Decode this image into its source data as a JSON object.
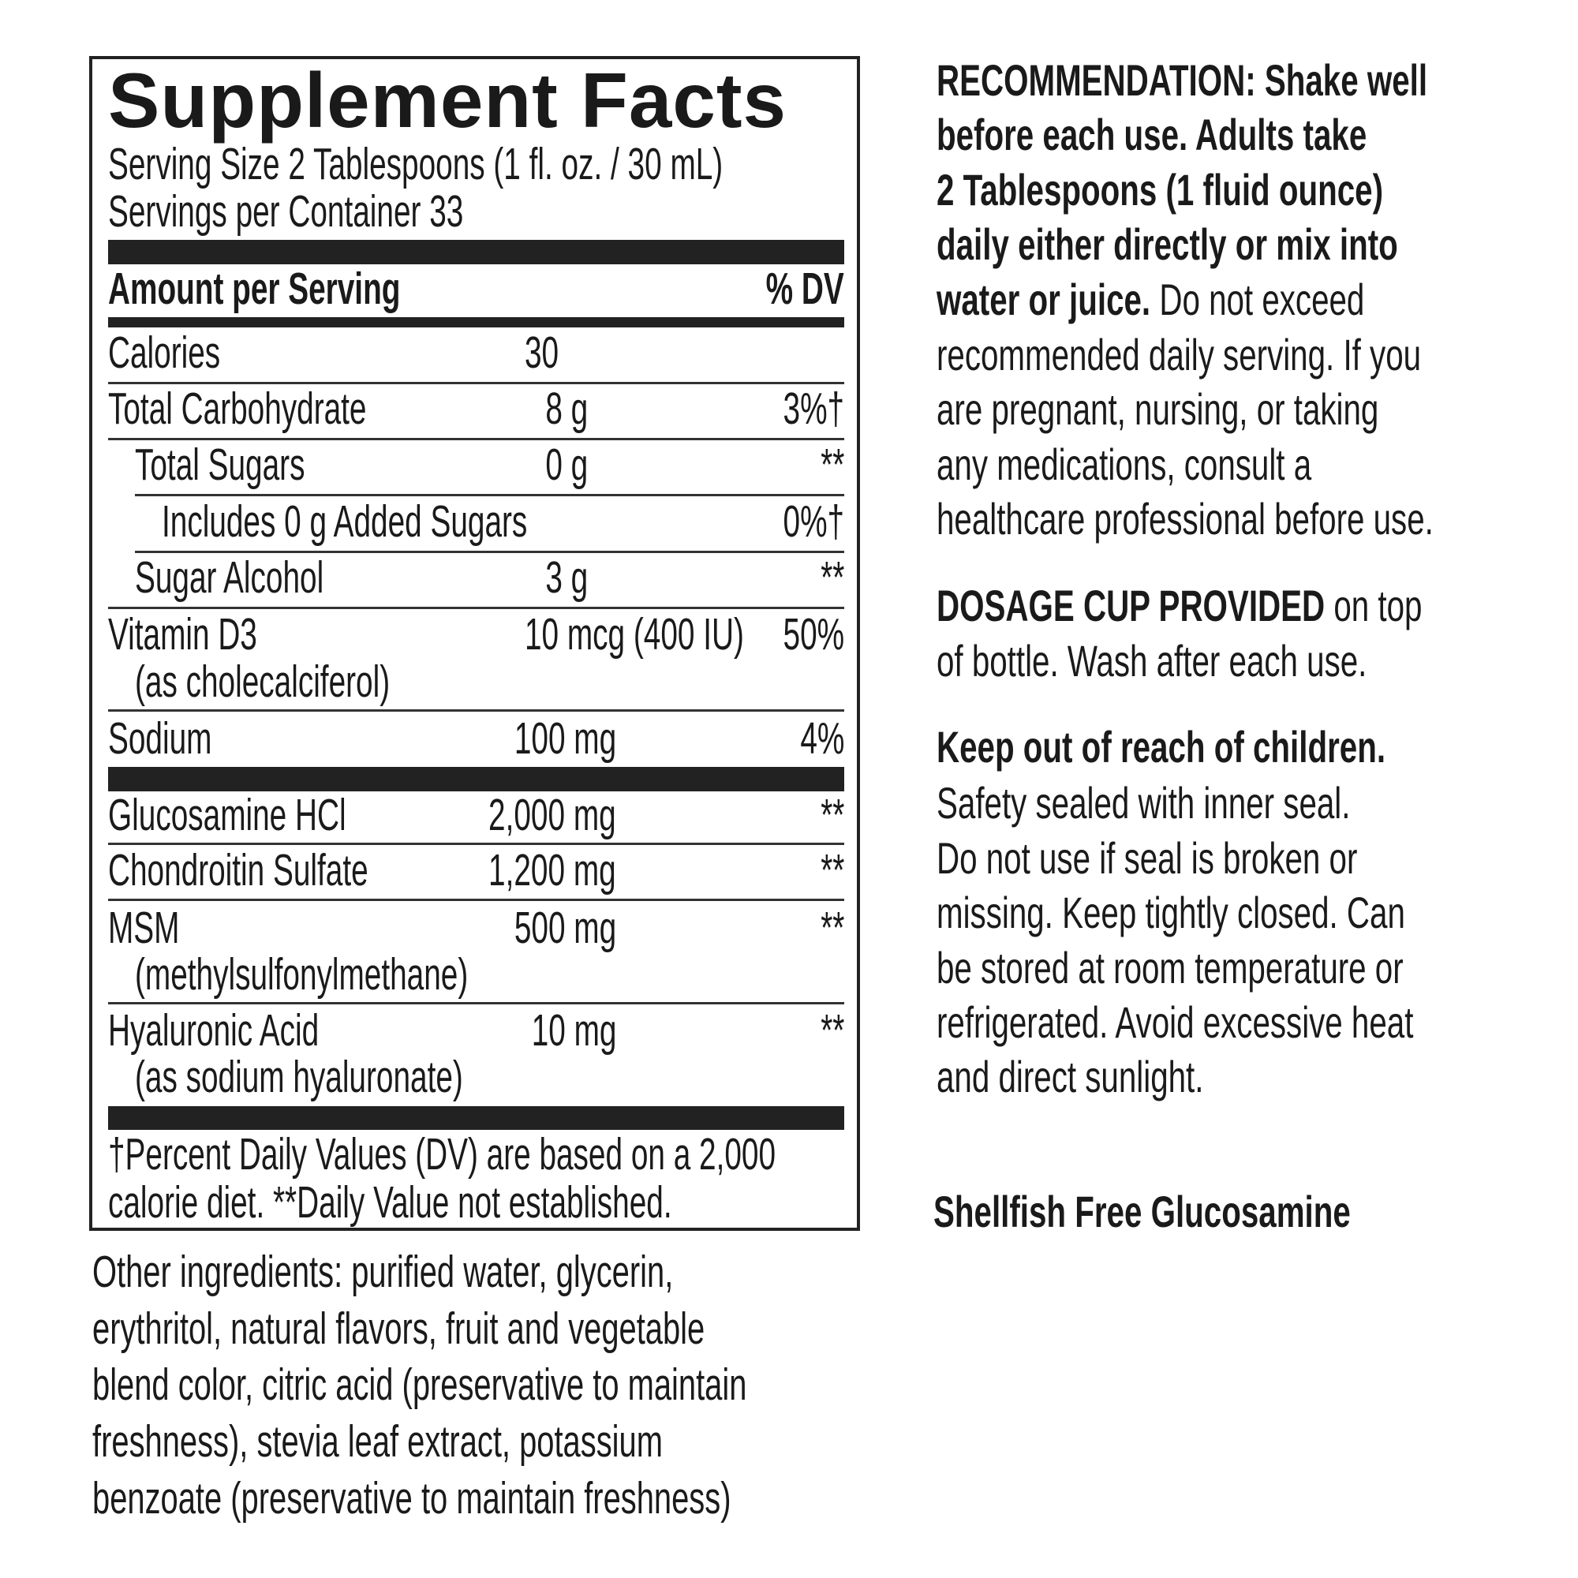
{
  "panel": {
    "title": "Supplement Facts",
    "serving_size": "Serving Size 2 Tablespoons (1 fl. oz. / 30 mL)",
    "servings_per_container": "Servings per Container 33",
    "header_amount": "Amount per Serving",
    "header_dv": "% DV",
    "rows": [
      {
        "name": "Calories",
        "amount": "30",
        "dv": ""
      },
      {
        "name": "Total Carbohydrate",
        "amount": "8 g",
        "dv": "3%†"
      },
      {
        "name": "Total Sugars",
        "amount": "0 g",
        "dv": "**"
      },
      {
        "name": "Includes 0 g Added Sugars",
        "amount": "",
        "dv": "0%†"
      },
      {
        "name": "Sugar Alcohol",
        "amount": "3 g",
        "dv": "**"
      },
      {
        "name": "Vitamin D3",
        "sub": "(as cholecalciferol)",
        "amount": "10 mcg (400 IU)",
        "dv": "50%"
      },
      {
        "name": "Sodium",
        "amount": "100 mg",
        "dv": "4%"
      },
      {
        "name": "Glucosamine HCl",
        "amount": "2,000 mg",
        "dv": "**"
      },
      {
        "name": "Chondroitin Sulfate",
        "amount": "1,200 mg",
        "dv": "**"
      },
      {
        "name": "MSM",
        "sub": "(methylsulfonylmethane)",
        "amount": "500 mg",
        "dv": "**"
      },
      {
        "name": "Hyaluronic Acid",
        "sub": "(as sodium hyaluronate)",
        "amount": "10 mg",
        "dv": "**"
      }
    ],
    "footnote": [
      "†Percent Daily Values (DV) are based on a 2,000",
      "calorie diet. **Daily Value not established."
    ]
  },
  "other_ingredients": [
    "Other ingredients:  purified water, glycerin,",
    "erythritol, natural flavors, fruit and vegetable",
    "blend color, citric acid (preservative to maintain",
    "freshness), stevia leaf extract, potassium",
    "benzoate (preservative to maintain freshness)"
  ],
  "recommendation": {
    "bold_lines": [
      "RECOMMENDATION: Shake well",
      "before each use. Adults take",
      "2 Tablespoons (1 fluid ounce)",
      "daily either directly or mix into",
      "water or juice."
    ],
    "line5_rest": " Do not exceed",
    "lines": [
      "recommended daily serving. If you",
      "are pregnant, nursing, or taking",
      "any medications, consult a",
      "healthcare professional before use."
    ]
  },
  "dosage": {
    "bold": "DOSAGE CUP PROVIDED",
    "rest": " on top",
    "line2": "of bottle. Wash after each use."
  },
  "safety": {
    "heading": "Keep out of reach of children.",
    "lines": [
      "Safety sealed with inner seal.",
      "Do not use if seal is broken or",
      "missing. Keep tightly closed. Can",
      "be stored at room temperature or",
      "refrigerated. Avoid excessive heat",
      "and direct sunlight."
    ]
  },
  "tagline": "Shellfish Free Glucosamine"
}
